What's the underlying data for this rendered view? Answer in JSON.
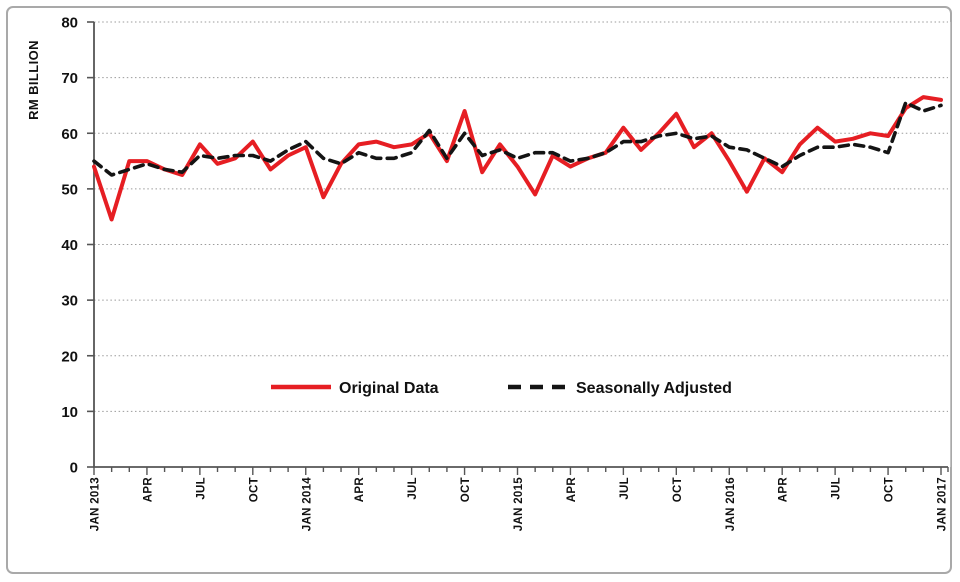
{
  "chart_data": {
    "type": "line",
    "title": "",
    "xlabel": "",
    "ylabel": "RM BILLION",
    "ylim": [
      0,
      80
    ],
    "y_tick_step": 10,
    "grid": "horizontal-dotted",
    "legend_position": "inside-lower-center",
    "n_points": 49,
    "x_label_every_n_points": 3,
    "x_labels": [
      "JAN 2013",
      "APR",
      "JUL",
      "OCT",
      "JAN 2014",
      "APR",
      "JUL",
      "OCT",
      "JAN 2015",
      "APR",
      "JUL",
      "OCT",
      "JAN 2016",
      "APR",
      "JUL",
      "OCT",
      "JAN 2017"
    ],
    "series": [
      {
        "name": "Original Data",
        "style": "solid",
        "color": "#e61e23",
        "values": [
          54,
          44.5,
          55,
          55,
          53.5,
          52.5,
          58,
          54.5,
          55.5,
          58.5,
          53.5,
          56,
          57.5,
          48.5,
          54.5,
          58,
          58.5,
          57.5,
          58,
          60,
          55,
          64,
          53,
          58,
          54,
          49,
          56,
          54,
          55.5,
          56.5,
          61,
          57,
          60,
          63.5,
          57.5,
          60,
          55,
          49.5,
          55.5,
          53,
          58,
          61,
          58.5,
          59,
          60,
          59.5,
          64.5,
          66.5,
          66
        ]
      },
      {
        "name": "Seasonally Adjusted",
        "style": "dashed",
        "color": "#141414",
        "values": [
          55,
          52.5,
          53.5,
          54.5,
          53.5,
          53,
          56,
          55.5,
          56,
          56,
          55,
          57,
          58.5,
          55.5,
          54.5,
          56.5,
          55.5,
          55.5,
          56.5,
          60.5,
          55.5,
          60,
          56,
          57,
          55.5,
          56.5,
          56.5,
          55,
          55.5,
          56.5,
          58.5,
          58.5,
          59.5,
          60,
          59,
          59.5,
          57.5,
          57,
          55.5,
          54,
          56,
          57.5,
          57.5,
          58,
          57.5,
          56.5,
          65.5,
          64,
          65
        ]
      }
    ]
  }
}
